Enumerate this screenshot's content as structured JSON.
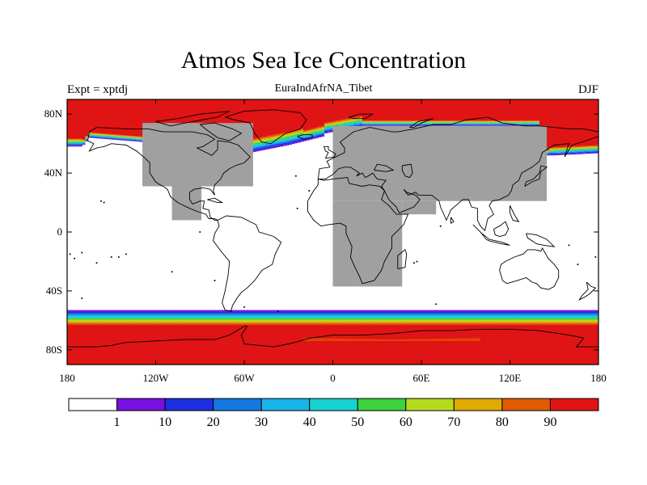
{
  "title": "Atmos Sea Ice Concentration",
  "left_label": "Expt = xptdj",
  "center_label": "EuraIndAfrNA_Tibet",
  "right_label": "DJF",
  "lon_ticks": [
    {
      "lon": -180,
      "label": "180"
    },
    {
      "lon": -120,
      "label": "120W"
    },
    {
      "lon": -60,
      "label": "60W"
    },
    {
      "lon": 0,
      "label": "0"
    },
    {
      "lon": 60,
      "label": "60E"
    },
    {
      "lon": 120,
      "label": "120E"
    },
    {
      "lon": 180,
      "label": "180"
    }
  ],
  "lat_ticks": [
    {
      "lat": 80,
      "label": "80N"
    },
    {
      "lat": 40,
      "label": "40N"
    },
    {
      "lat": 0,
      "label": "0"
    },
    {
      "lat": -40,
      "label": "40S"
    },
    {
      "lat": -80,
      "label": "80S"
    }
  ],
  "colorbar": {
    "colors": [
      "#ffffff",
      "#7a10e0",
      "#1c2fe0",
      "#1478e0",
      "#18b4e8",
      "#18d2d2",
      "#3cd23c",
      "#b4dc1c",
      "#e0aa00",
      "#e05a00",
      "#e01414"
    ],
    "labels": [
      "1",
      "10",
      "20",
      "30",
      "40",
      "50",
      "60",
      "70",
      "80",
      "90"
    ]
  },
  "land_mask_color": "#a0a0a0",
  "mask_regions": [
    {
      "name": "North America",
      "lon": [
        -129,
        -54
      ],
      "lat": [
        31,
        74
      ]
    },
    {
      "name": "Central America",
      "lon": [
        -109,
        -89
      ],
      "lat": [
        8,
        31
      ]
    },
    {
      "name": "Eurasia",
      "lon": [
        0,
        145
      ],
      "lat": [
        21,
        72
      ]
    },
    {
      "name": "Africa",
      "lon": [
        0,
        47
      ],
      "lat": [
        -37,
        21
      ]
    },
    {
      "name": "Arabia",
      "lon": [
        47,
        70
      ],
      "lat": [
        12,
        21
      ]
    }
  ]
}
